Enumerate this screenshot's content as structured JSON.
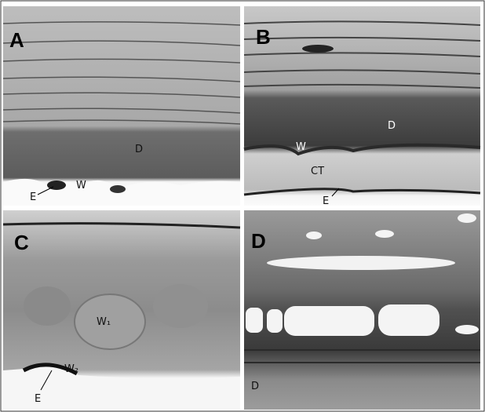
{
  "panels": [
    {
      "letter": "A",
      "labels": [
        "D",
        "W",
        "E"
      ]
    },
    {
      "letter": "B",
      "labels": [
        "D",
        "W",
        "CT",
        "E"
      ]
    },
    {
      "letter": "C",
      "labels": [
        "W₁",
        "W₂",
        "E"
      ]
    },
    {
      "letter": "D",
      "labels": [
        "D"
      ]
    }
  ]
}
